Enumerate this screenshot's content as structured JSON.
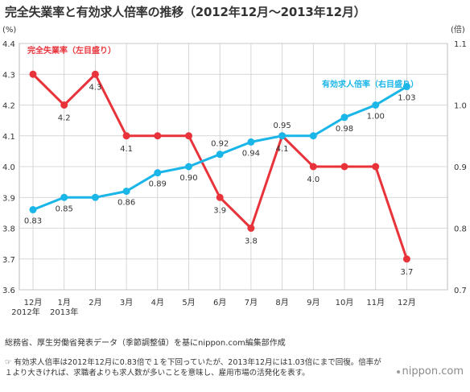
{
  "title": "完全失業率と有効求人倍率の推移（2012年12月〜2013年12月）",
  "source": "総務省、厚生労働省発表データ（季節調整値）を基にnippon.com編集部作成",
  "note": "☞ 有効求人倍率は2012年12月に0.83倍で１を下回っていたが、2013年12月には1.03倍にまで回復。倍率が１より大きければ、求職者よりも求人数が多いことを意味し、雇用市場の活発化を表す。",
  "logo": "nippon.com",
  "chart_data": {
    "type": "line",
    "categories": [
      "12月",
      "1月",
      "2月",
      "3月",
      "4月",
      "5月",
      "6月",
      "7月",
      "8月",
      "9月",
      "10月",
      "11月",
      "12月"
    ],
    "year_labels": [
      {
        "index": 0,
        "text": "2012年"
      },
      {
        "index": 1,
        "text": "2013年"
      }
    ],
    "left_axis": {
      "unit": "(%)",
      "ylim": [
        3.6,
        4.4
      ],
      "ticks": [
        "3.6",
        "3.7",
        "3.8",
        "3.9",
        "4.0",
        "4.1",
        "4.2",
        "4.3",
        "4.4"
      ]
    },
    "right_axis": {
      "unit": "(倍)",
      "ylim": [
        0.7,
        1.1
      ],
      "ticks": [
        "0.7",
        "0.8",
        "0.9",
        "1.0",
        "1.1"
      ]
    },
    "grid": true,
    "series": [
      {
        "name": "完全失業率（左目盛り）",
        "axis": "left",
        "color": "#e8333a",
        "values": [
          4.3,
          4.2,
          4.3,
          4.1,
          4.1,
          4.1,
          3.9,
          3.8,
          4.1,
          4.0,
          4.0,
          4.0,
          3.7
        ],
        "labels": [
          "",
          "4.2",
          "4.3",
          "4.1",
          "",
          "",
          "3.9",
          "3.8",
          "4.1",
          "4.0",
          "",
          "",
          "3.7"
        ]
      },
      {
        "name": "有効求人倍率（右目盛り）",
        "axis": "right",
        "color": "#1ab6e8",
        "values": [
          0.83,
          0.85,
          0.85,
          0.86,
          0.89,
          0.9,
          0.92,
          0.94,
          0.95,
          0.95,
          0.98,
          1.0,
          1.03
        ],
        "labels": [
          "0.83",
          "0.85",
          "",
          "0.86",
          "0.89",
          "0.90",
          "0.92",
          "0.94",
          "0.95",
          "",
          "0.98",
          "1.00",
          "1.03"
        ]
      }
    ]
  }
}
